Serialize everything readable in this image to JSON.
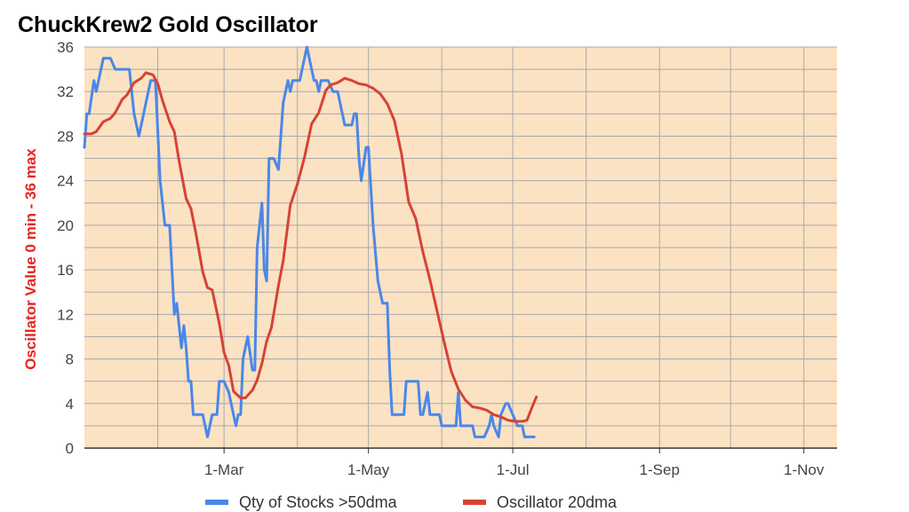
{
  "chart_data": {
    "type": "line",
    "title": "ChuckKrew2 Gold Oscillator",
    "ylabel": "Oscillator Value 0 min - 36 max",
    "xlabel": "",
    "ylim": [
      0,
      36
    ],
    "y_ticks": [
      "0",
      "4",
      "8",
      "12",
      "16",
      "20",
      "24",
      "28",
      "32",
      "36"
    ],
    "x_ticks": [
      "1-Mar",
      "1-May",
      "1-Jul",
      "1-Sep",
      "1-Nov"
    ],
    "xlim": [
      "2018-01-01",
      "2018-11-15"
    ],
    "grid": true,
    "legend": "bottom",
    "colors": {
      "plot_background": "#fbe2c3",
      "ylabel": "#e8231f",
      "grid": "#a9a9a9"
    },
    "series": [
      {
        "name": "Qty of Stocks >50dma",
        "color": "#4a87e8",
        "x": [
          "2018-01-01",
          "2018-01-02",
          "2018-01-03",
          "2018-01-05",
          "2018-01-06",
          "2018-01-09",
          "2018-01-11",
          "2018-01-12",
          "2018-01-14",
          "2018-01-20",
          "2018-01-22",
          "2018-01-23",
          "2018-01-24",
          "2018-01-29",
          "2018-01-31",
          "2018-02-02",
          "2018-02-04",
          "2018-02-05",
          "2018-02-06",
          "2018-02-08",
          "2018-02-09",
          "2018-02-11",
          "2018-02-12",
          "2018-02-13",
          "2018-02-14",
          "2018-02-15",
          "2018-02-16",
          "2018-02-17",
          "2018-02-18",
          "2018-02-20",
          "2018-02-22",
          "2018-02-24",
          "2018-02-25",
          "2018-02-26",
          "2018-02-27",
          "2018-03-01",
          "2018-03-03",
          "2018-03-05",
          "2018-03-06",
          "2018-03-07",
          "2018-03-08",
          "2018-03-09",
          "2018-03-11",
          "2018-03-13",
          "2018-03-14",
          "2018-03-15",
          "2018-03-16",
          "2018-03-17",
          "2018-03-18",
          "2018-03-19",
          "2018-03-20",
          "2018-03-22",
          "2018-03-24",
          "2018-03-26",
          "2018-03-27",
          "2018-03-28",
          "2018-03-29",
          "2018-03-30",
          "2018-04-02",
          "2018-04-03",
          "2018-04-05",
          "2018-04-07",
          "2018-04-08",
          "2018-04-09",
          "2018-04-10",
          "2018-04-11",
          "2018-04-12",
          "2018-04-14",
          "2018-04-16",
          "2018-04-18",
          "2018-04-21",
          "2018-04-22",
          "2018-04-24",
          "2018-04-25",
          "2018-04-26",
          "2018-04-27",
          "2018-04-28",
          "2018-04-30",
          "2018-05-01",
          "2018-05-03",
          "2018-05-05",
          "2018-05-06",
          "2018-05-07",
          "2018-05-09",
          "2018-05-10",
          "2018-05-11",
          "2018-05-12",
          "2018-05-13",
          "2018-05-15",
          "2018-05-16",
          "2018-05-17",
          "2018-05-18",
          "2018-05-19",
          "2018-05-20",
          "2018-05-22",
          "2018-05-23",
          "2018-05-24",
          "2018-05-26",
          "2018-05-27",
          "2018-05-29",
          "2018-05-31",
          "2018-06-01",
          "2018-06-04",
          "2018-06-05",
          "2018-06-06",
          "2018-06-07",
          "2018-06-08",
          "2018-06-09",
          "2018-06-11",
          "2018-06-13",
          "2018-06-14",
          "2018-06-15",
          "2018-06-17",
          "2018-06-19",
          "2018-06-21",
          "2018-06-22",
          "2018-06-23",
          "2018-06-25",
          "2018-06-26",
          "2018-06-28",
          "2018-06-29",
          "2018-07-01",
          "2018-07-03",
          "2018-07-05",
          "2018-07-06",
          "2018-07-07",
          "2018-07-08",
          "2018-07-09",
          "2018-07-10"
        ],
        "values": [
          27,
          30,
          30,
          33,
          32,
          35,
          35,
          35,
          34,
          34,
          30,
          29,
          28,
          33,
          33,
          24,
          20,
          20,
          20,
          12,
          13,
          9,
          11,
          9,
          6,
          6,
          3,
          3,
          3,
          3,
          1,
          3,
          3,
          3,
          6,
          6,
          5,
          3,
          2,
          3,
          3,
          8,
          10,
          7,
          7,
          18,
          20,
          22,
          16,
          15,
          26,
          26,
          25,
          31,
          32,
          33,
          32,
          33,
          33,
          34,
          36,
          34,
          33,
          33,
          32,
          33,
          33,
          33,
          32,
          32,
          29,
          29,
          29,
          30,
          30,
          26,
          24,
          27,
          27,
          20,
          15,
          14,
          13,
          13,
          7,
          3,
          3,
          3,
          3,
          3,
          6,
          6,
          6,
          6,
          6,
          3,
          3,
          5,
          3,
          3,
          3,
          2,
          2,
          2,
          2,
          2,
          5,
          2,
          2,
          2,
          2,
          1,
          1,
          1,
          2,
          3,
          2,
          1,
          3,
          4,
          4,
          3,
          2,
          2,
          1,
          1,
          1,
          1,
          1
        ]
      },
      {
        "name": "Oscillator 20dma",
        "color": "#d64336",
        "x": [
          "2018-01-01",
          "2018-01-04",
          "2018-01-06",
          "2018-01-09",
          "2018-01-12",
          "2018-01-14",
          "2018-01-17",
          "2018-01-19",
          "2018-01-22",
          "2018-01-25",
          "2018-01-27",
          "2018-01-30",
          "2018-02-01",
          "2018-02-03",
          "2018-02-06",
          "2018-02-08",
          "2018-02-10",
          "2018-02-13",
          "2018-02-15",
          "2018-02-17",
          "2018-02-20",
          "2018-02-22",
          "2018-02-24",
          "2018-02-27",
          "2018-03-01",
          "2018-03-03",
          "2018-03-05",
          "2018-03-08",
          "2018-03-10",
          "2018-03-13",
          "2018-03-15",
          "2018-03-17",
          "2018-03-19",
          "2018-03-21",
          "2018-03-24",
          "2018-03-26",
          "2018-03-29",
          "2018-04-01",
          "2018-04-04",
          "2018-04-07",
          "2018-04-10",
          "2018-04-13",
          "2018-04-15",
          "2018-04-18",
          "2018-04-21",
          "2018-04-24",
          "2018-04-27",
          "2018-04-30",
          "2018-05-03",
          "2018-05-06",
          "2018-05-09",
          "2018-05-12",
          "2018-05-15",
          "2018-05-18",
          "2018-05-21",
          "2018-05-24",
          "2018-05-27",
          "2018-05-30",
          "2018-06-02",
          "2018-06-05",
          "2018-06-08",
          "2018-06-11",
          "2018-06-14",
          "2018-06-17",
          "2018-06-20",
          "2018-06-23",
          "2018-06-26",
          "2018-06-29",
          "2018-07-02",
          "2018-07-05",
          "2018-07-07",
          "2018-07-09",
          "2018-07-11"
        ],
        "values": [
          28.2,
          28.2,
          28.4,
          29.3,
          29.6,
          30.1,
          31.3,
          31.7,
          32.8,
          33.2,
          33.7,
          33.5,
          32.7,
          31.2,
          29.3,
          28.4,
          25.8,
          22.4,
          21.5,
          19.4,
          15.8,
          14.4,
          14.2,
          11.2,
          8.6,
          7.4,
          5.1,
          4.5,
          4.5,
          5.2,
          6.1,
          7.6,
          9.6,
          10.8,
          14.6,
          16.8,
          21.8,
          23.7,
          26.1,
          29.1,
          30.1,
          32.1,
          32.6,
          32.8,
          33.2,
          33.0,
          32.7,
          32.6,
          32.3,
          31.8,
          30.9,
          29.4,
          26.4,
          22.1,
          20.6,
          17.6,
          15.1,
          12.3,
          9.5,
          6.9,
          5.3,
          4.3,
          3.7,
          3.6,
          3.4,
          3.0,
          2.8,
          2.5,
          2.4,
          2.4,
          2.5,
          3.6,
          4.6
        ]
      }
    ]
  }
}
